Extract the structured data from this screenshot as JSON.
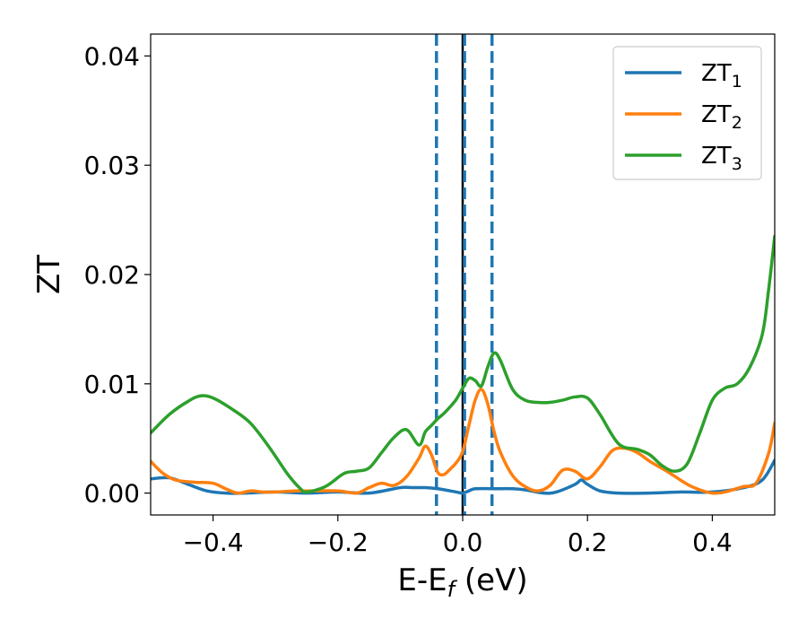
{
  "chart_data": {
    "type": "line",
    "xlabel": {
      "main": "E-E",
      "sub": "f",
      "unit": " (eV)"
    },
    "ylabel": "ZT",
    "xlim": [
      -0.5,
      0.5
    ],
    "ylim": [
      -0.002,
      0.042
    ],
    "xticks": [
      -0.4,
      -0.2,
      0.0,
      0.2,
      0.4
    ],
    "xtick_labels": [
      "−0.4",
      "−0.2",
      "0.0",
      "0.2",
      "0.4"
    ],
    "yticks": [
      0.0,
      0.01,
      0.02,
      0.03,
      0.04
    ],
    "ytick_labels": [
      "0.00",
      "0.01",
      "0.02",
      "0.03",
      "0.04"
    ],
    "grid": false,
    "legend_position": "top-right",
    "vlines": [
      {
        "x": 0.0,
        "style": "solid",
        "color": "#000000"
      },
      {
        "x": -0.042,
        "style": "dashed",
        "color": "#1f77b4"
      },
      {
        "x": 0.003,
        "style": "dashed",
        "color": "#1f77b4"
      },
      {
        "x": 0.047,
        "style": "dashed",
        "color": "#1f77b4"
      }
    ],
    "series": [
      {
        "name": "ZT",
        "sub": "1",
        "color": "#1f77b4",
        "x": [
          -0.5,
          -0.47,
          -0.44,
          -0.41,
          -0.38,
          -0.35,
          -0.3,
          -0.25,
          -0.2,
          -0.15,
          -0.1,
          -0.08,
          -0.06,
          -0.04,
          -0.02,
          -0.01,
          0.0,
          0.01,
          0.02,
          0.05,
          0.08,
          0.1,
          0.13,
          0.15,
          0.18,
          0.19,
          0.2,
          0.22,
          0.25,
          0.3,
          0.35,
          0.4,
          0.45,
          0.48,
          0.5
        ],
        "y": [
          0.0013,
          0.0014,
          0.0008,
          0.0002,
          0.0,
          0.0,
          0.0001,
          0.0,
          0.0001,
          0.0,
          0.0005,
          0.0005,
          0.0005,
          0.0004,
          0.0002,
          0.0001,
          0.0,
          0.0002,
          0.0004,
          0.0004,
          0.0004,
          0.0003,
          0.0,
          0.0001,
          0.0008,
          0.0012,
          0.0008,
          0.0002,
          0.0,
          0.0,
          0.0001,
          0.0001,
          0.0005,
          0.0012,
          0.003
        ]
      },
      {
        "name": "ZT",
        "sub": "2",
        "color": "#ff7f0e",
        "x": [
          -0.5,
          -0.48,
          -0.46,
          -0.43,
          -0.4,
          -0.38,
          -0.36,
          -0.34,
          -0.32,
          -0.3,
          -0.27,
          -0.25,
          -0.2,
          -0.17,
          -0.15,
          -0.13,
          -0.11,
          -0.09,
          -0.07,
          -0.06,
          -0.05,
          -0.04,
          -0.03,
          -0.02,
          -0.01,
          0.0,
          0.01,
          0.02,
          0.03,
          0.04,
          0.05,
          0.06,
          0.08,
          0.1,
          0.12,
          0.14,
          0.16,
          0.18,
          0.2,
          0.22,
          0.24,
          0.26,
          0.28,
          0.3,
          0.33,
          0.36,
          0.38,
          0.4,
          0.42,
          0.45,
          0.47,
          0.49,
          0.5
        ],
        "y": [
          0.0029,
          0.0018,
          0.0012,
          0.001,
          0.0009,
          0.0004,
          0.0,
          0.0002,
          0.0001,
          0.0001,
          0.0002,
          0.0002,
          0.0002,
          0.0,
          0.0005,
          0.0009,
          0.0007,
          0.0015,
          0.0032,
          0.0043,
          0.0035,
          0.0019,
          0.0017,
          0.0022,
          0.0028,
          0.0038,
          0.0062,
          0.0085,
          0.0095,
          0.0082,
          0.0057,
          0.0038,
          0.0016,
          0.0006,
          0.0002,
          0.0007,
          0.0021,
          0.002,
          0.0013,
          0.0024,
          0.0039,
          0.0041,
          0.0037,
          0.0029,
          0.0019,
          0.0008,
          0.0003,
          0.0,
          0.0001,
          0.0006,
          0.0009,
          0.0036,
          0.0064
        ]
      },
      {
        "name": "ZT",
        "sub": "3",
        "color": "#2ca02c",
        "x": [
          -0.5,
          -0.47,
          -0.44,
          -0.42,
          -0.4,
          -0.37,
          -0.34,
          -0.31,
          -0.28,
          -0.26,
          -0.25,
          -0.22,
          -0.19,
          -0.17,
          -0.15,
          -0.13,
          -0.11,
          -0.09,
          -0.07,
          -0.06,
          -0.05,
          -0.04,
          -0.03,
          -0.02,
          -0.01,
          0.0,
          0.01,
          0.02,
          0.03,
          0.04,
          0.05,
          0.06,
          0.08,
          0.1,
          0.12,
          0.14,
          0.16,
          0.18,
          0.2,
          0.22,
          0.25,
          0.28,
          0.3,
          0.32,
          0.34,
          0.36,
          0.38,
          0.4,
          0.42,
          0.44,
          0.46,
          0.48,
          0.49,
          0.5
        ],
        "y": [
          0.0055,
          0.0072,
          0.0084,
          0.0089,
          0.0087,
          0.0077,
          0.0064,
          0.0042,
          0.0017,
          0.0004,
          0.0001,
          0.0006,
          0.0018,
          0.002,
          0.0023,
          0.0037,
          0.0051,
          0.0058,
          0.0044,
          0.0056,
          0.0062,
          0.0068,
          0.0073,
          0.0079,
          0.0086,
          0.0096,
          0.0105,
          0.0103,
          0.0098,
          0.0115,
          0.0128,
          0.0122,
          0.0095,
          0.0085,
          0.0083,
          0.0083,
          0.0085,
          0.0088,
          0.0087,
          0.0072,
          0.0045,
          0.004,
          0.0035,
          0.0025,
          0.002,
          0.0027,
          0.0055,
          0.0085,
          0.0096,
          0.01,
          0.0115,
          0.0145,
          0.0185,
          0.0235
        ]
      }
    ]
  }
}
